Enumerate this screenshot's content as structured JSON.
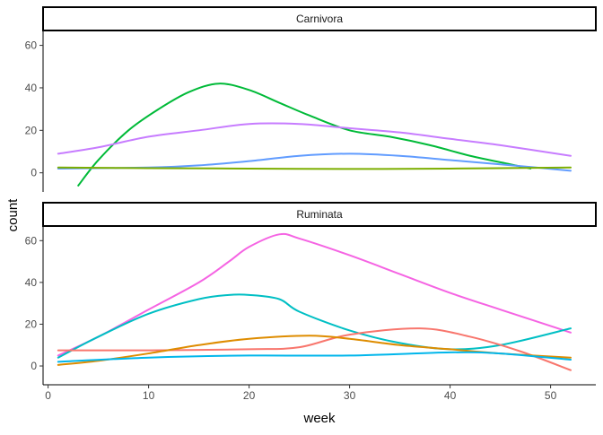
{
  "chart_data": {
    "type": "line",
    "xlabel": "week",
    "ylabel": "count",
    "xlim": [
      -0.5,
      54.5
    ],
    "x_ticks": [
      0,
      10,
      20,
      30,
      40,
      50
    ],
    "y_ticks": [
      0,
      20,
      40,
      60
    ],
    "grid": false,
    "legend": "none",
    "facets": [
      {
        "strip_label": "Carnivora",
        "ylim": [
          -9,
          67
        ],
        "series": [
          {
            "color": "#00BA38",
            "x": [
              3,
              5,
              8,
              11,
              14,
              17,
              20,
              23,
              26,
              30,
              34,
              38,
              42,
              46,
              48
            ],
            "y": [
              -6,
              6,
              20,
              30,
              38,
              42,
              39,
              33,
              27,
              20,
              17,
              13,
              8,
              4,
              2
            ]
          },
          {
            "color": "#C77CFF",
            "x": [
              1,
              5,
              10,
              15,
              20,
              25,
              30,
              35,
              40,
              45,
              52
            ],
            "y": [
              9,
              12,
              17,
              20,
              23,
              23,
              21,
              19,
              16,
              13,
              8
            ]
          },
          {
            "color": "#619CFF",
            "x": [
              1,
              10,
              15,
              20,
              25,
              30,
              35,
              40,
              45,
              52
            ],
            "y": [
              2,
              2.5,
              3.5,
              5.5,
              8,
              9,
              8,
              6,
              4,
              1
            ]
          },
          {
            "color": "#7CAE00",
            "x": [
              1,
              10,
              20,
              30,
              40,
              52
            ],
            "y": [
              2.5,
              2.2,
              2,
              1.8,
              2,
              2.5
            ]
          }
        ]
      },
      {
        "strip_label": "Ruminata",
        "ylim": [
          -9,
          67
        ],
        "series": [
          {
            "color": "#F564E3",
            "x": [
              1,
              5,
              10,
              15,
              18,
              20,
              23,
              25,
              30,
              35,
              40,
              45,
              52
            ],
            "y": [
              5,
              14,
              27,
              40,
              50,
              57,
              63,
              61,
              53,
              44,
              35,
              27,
              16
            ]
          },
          {
            "color": "#00BFC4",
            "x": [
              1,
              5,
              10,
              15,
              18,
              20,
              23,
              25,
              30,
              35,
              40,
              45,
              52
            ],
            "y": [
              4,
              14,
              25,
              32,
              34,
              34,
              32,
              26,
              17,
              11,
              8,
              10,
              18
            ]
          },
          {
            "color": "#F8766D",
            "x": [
              1,
              10,
              20,
              25,
              30,
              37,
              42,
              47,
              52
            ],
            "y": [
              7.5,
              7.5,
              8,
              9,
              15,
              18,
              14,
              7,
              -2
            ]
          },
          {
            "color": "#DE8C00",
            "x": [
              1,
              5,
              10,
              15,
              20,
              26,
              30,
              35,
              40,
              45,
              52
            ],
            "y": [
              0.5,
              2.5,
              6,
              10,
              13,
              14.5,
              13,
              10,
              8,
              6,
              4
            ]
          },
          {
            "color": "#00B6EB",
            "x": [
              1,
              10,
              20,
              30,
              40,
              45,
              52
            ],
            "y": [
              2,
              4,
              5,
              5,
              6.5,
              6,
              3
            ]
          }
        ]
      }
    ]
  }
}
